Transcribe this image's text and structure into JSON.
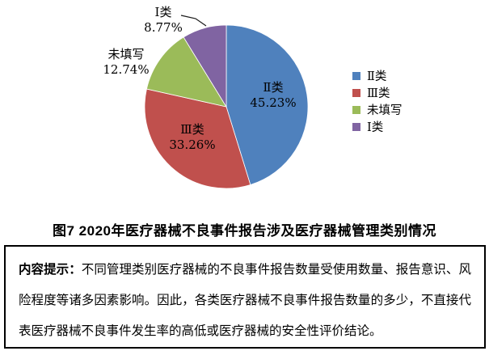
{
  "chart_data": {
    "type": "pie",
    "title": "图7 2020年医疗器械不良事件报告涉及医疗器械管理类别情况",
    "categories": [
      "Ⅱ类",
      "Ⅲ类",
      "未填写",
      "Ⅰ类"
    ],
    "values": [
      45.23,
      33.26,
      12.74,
      8.77
    ],
    "percent_labels": [
      "45.23%",
      "33.26%",
      "12.74%",
      "8.77%"
    ],
    "unit": "%",
    "colors": [
      "#4F81BD",
      "#C0504D",
      "#9BBB59",
      "#8064A2"
    ],
    "start_angle_deg": 0,
    "direction": "clockwise",
    "label_placement": [
      "inside",
      "inside",
      "outside",
      "outside"
    ],
    "legend_position": "right",
    "legend_entries": [
      "Ⅱ类",
      "Ⅲ类",
      "未填写",
      "Ⅰ类"
    ]
  },
  "caption": {
    "text": "图7 2020年医疗器械不良事件报告涉及医疗器械管理类别情况"
  },
  "note": {
    "label": "内容提示：",
    "text": "不同管理类别医疗器械的不良事件报告数量受使用数量、报告意识、风险程度等诸多因素影响。因此，各类医疗器械不良事件报告数量的多少，不直接代表医疗器械不良事件发生率的高低或医疗器械的安全性评价结论。"
  }
}
